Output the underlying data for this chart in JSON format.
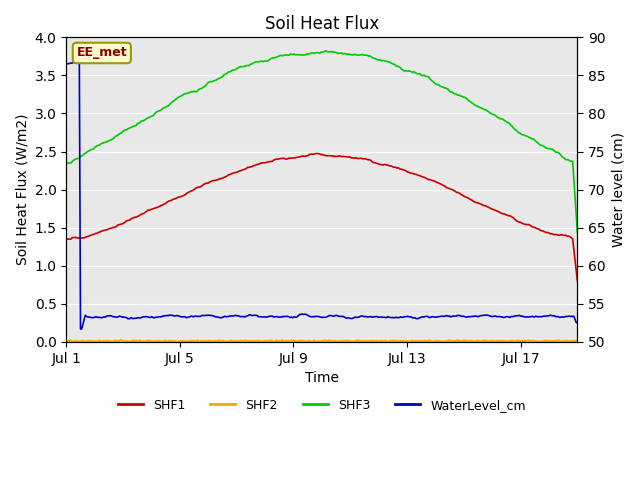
{
  "title": "Soil Heat Flux",
  "xlabel": "Time",
  "ylabel_left": "Soil Heat Flux (W/m2)",
  "ylabel_right": "Water level (cm)",
  "ylim_left": [
    0.0,
    4.0
  ],
  "ylim_right": [
    50,
    90
  ],
  "yticks_left": [
    0.0,
    0.5,
    1.0,
    1.5,
    2.0,
    2.5,
    3.0,
    3.5,
    4.0
  ],
  "yticks_right": [
    50,
    55,
    60,
    65,
    70,
    75,
    80,
    85,
    90
  ],
  "annotation_text": "EE_met",
  "annotation_color": "#8B0000",
  "annotation_bg": "#FFFACD",
  "bg_color": "#E8E8E8",
  "line_colors": {
    "SHF1": "#CC0000",
    "SHF2": "#FFA500",
    "SHF3": "#00CC00",
    "WaterLevel": "#0000CC"
  },
  "legend_labels": [
    "SHF1",
    "SHF2",
    "SHF3",
    "WaterLevel_cm"
  ],
  "xtick_positions": [
    0,
    4,
    8,
    12,
    16
  ],
  "xtick_labels": [
    "Jul 1",
    "Jul 5",
    "Jul 9",
    "Jul 13",
    "Jul 17"
  ],
  "xlim": [
    0,
    18
  ]
}
